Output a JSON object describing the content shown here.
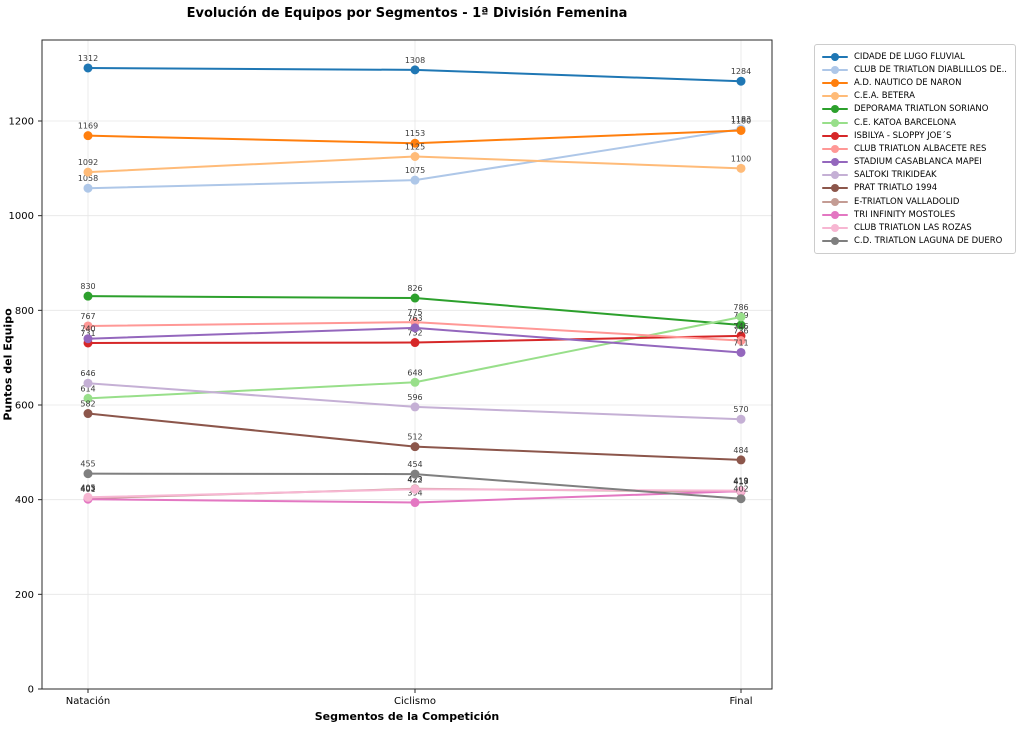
{
  "chart_data": {
    "type": "line",
    "title": "Evolución de Equipos por Segmentos - 1ª División Femenina",
    "xlabel": "Segmentos de la Competición",
    "ylabel": "Puntos del Equipo",
    "categories": [
      "Natación",
      "Ciclismo",
      "Final"
    ],
    "yticks": [
      0,
      200,
      400,
      600,
      800,
      1000,
      1200
    ],
    "ylim": [
      0,
      1371
    ],
    "grid": true,
    "grid_color": "#e6e6e6",
    "axis_color": "#2a2a2a",
    "point_label_color": "#3c3c3c",
    "legend_position": "right-outside",
    "point_labels": true,
    "series": [
      {
        "name": "CIDADE DE LUGO FLUVIAL",
        "color": "#1f77b4",
        "values": [
          1312,
          1308,
          1284
        ]
      },
      {
        "name": "CLUB DE TRIATLÓN DIABLILLOS DE...",
        "color": "#aec7e8",
        "values": [
          1058,
          1075,
          1183
        ]
      },
      {
        "name": "A.D. NAUTICO DE NARON",
        "color": "#ff7f0e",
        "values": [
          1169,
          1153,
          1180
        ]
      },
      {
        "name": "C.E.A. BETERA",
        "color": "#ffbb78",
        "values": [
          1092,
          1125,
          1100
        ]
      },
      {
        "name": "DEPORAMA TRIATLÓN SORIANO",
        "color": "#2ca02c",
        "values": [
          830,
          826,
          769
        ]
      },
      {
        "name": "C.E. KATOA BARCELONA",
        "color": "#98df8a",
        "values": [
          614,
          648,
          786
        ]
      },
      {
        "name": "ISBILYA - SLOPPY JOE´S",
        "color": "#d62728",
        "values": [
          731,
          732,
          746
        ]
      },
      {
        "name": "CLUB TRIATLÓN ALBACETE RES",
        "color": "#ff9896",
        "values": [
          767,
          775,
          736
        ]
      },
      {
        "name": "STADIUM CASABLANCA MAPEI",
        "color": "#9467bd",
        "values": [
          740,
          763,
          711
        ]
      },
      {
        "name": "SALTOKI TRIKIDEAK",
        "color": "#c5b0d5",
        "values": [
          646,
          596,
          570
        ]
      },
      {
        "name": "PRAT TRIATLO 1994",
        "color": "#8c564b",
        "values": [
          582,
          512,
          484
        ]
      },
      {
        "name": "E-TRIATLÓN VALLADOLID",
        "color": "#c49c94",
        "values": [
          403,
          423,
          417
        ]
      },
      {
        "name": "TRI INFINITY MÓSTOLES",
        "color": "#e377c2",
        "values": [
          401,
          394,
          418
        ]
      },
      {
        "name": "CLUB TRIATLON LAS ROZAS",
        "color": "#f7b6d2",
        "values": [
          405,
          422,
          419
        ]
      },
      {
        "name": "C.D. TRIATLÓN LAGUNA DE DUERO",
        "color": "#7f7f7f",
        "values": [
          455,
          454,
          402
        ]
      }
    ]
  }
}
